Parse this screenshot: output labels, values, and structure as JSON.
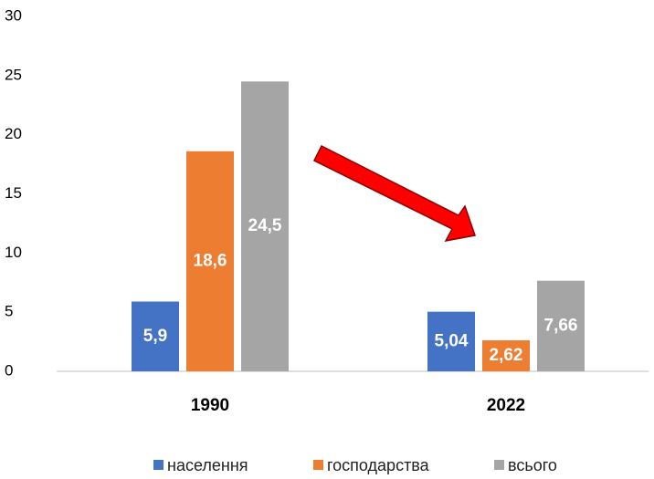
{
  "chart_data": {
    "type": "bar",
    "categories": [
      "1990",
      "2022"
    ],
    "series": [
      {
        "name": "населення",
        "color": "#4472c4",
        "values": [
          5.9,
          5.04
        ],
        "value_labels": [
          "5,9",
          "5,04"
        ]
      },
      {
        "name": "господарства",
        "color": "#ed7d31",
        "values": [
          18.6,
          2.62
        ],
        "value_labels": [
          "18,6",
          "2,62"
        ]
      },
      {
        "name": "всього",
        "color": "#a5a5a5",
        "values": [
          24.5,
          7.66
        ],
        "value_labels": [
          "24,5",
          "7,66"
        ]
      }
    ],
    "ylim": [
      0,
      30
    ],
    "yticks": [
      0,
      5,
      10,
      15,
      20,
      25,
      30
    ],
    "grid": false,
    "legend": "bottom"
  }
}
